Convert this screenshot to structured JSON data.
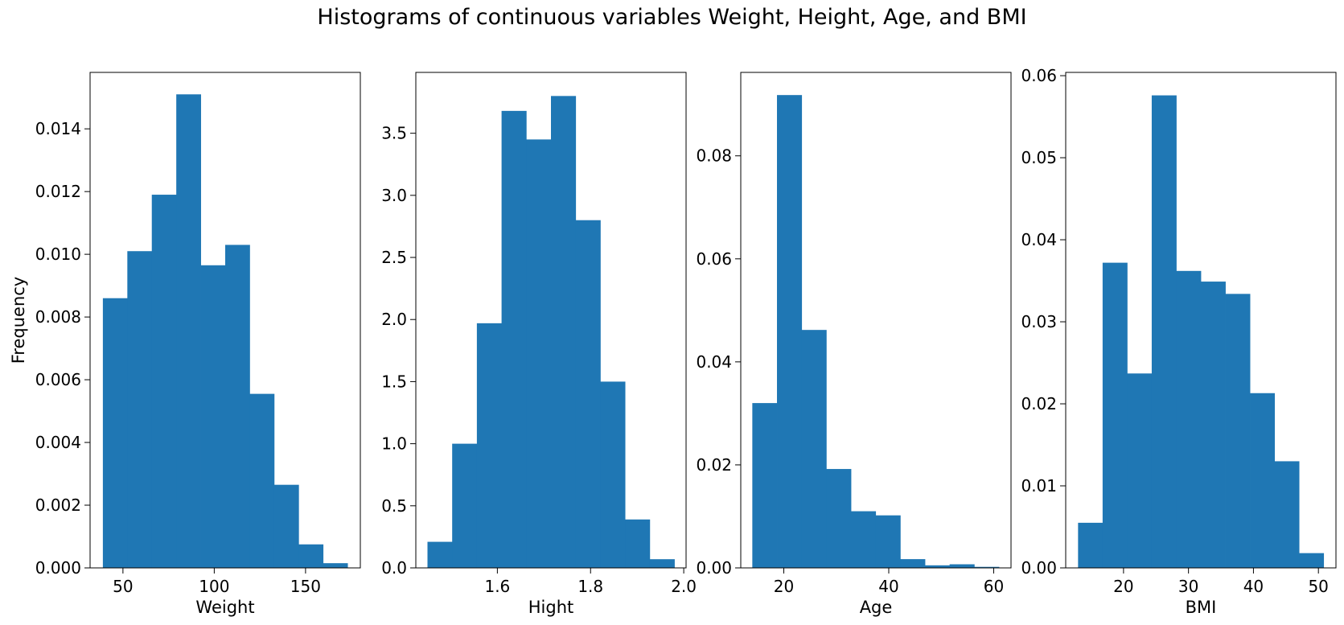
{
  "figure": {
    "title": "Histograms of continuous variables Weight, Height, Age, and BMI"
  },
  "colors": {
    "bar": "#1f77b4"
  },
  "chart_data": [
    {
      "type": "bar",
      "xlabel": "Weight",
      "ylabel": "Frequency",
      "xlim": [
        32,
        180
      ],
      "ylim": [
        0,
        0.0158
      ],
      "xticks": [
        50,
        100,
        150
      ],
      "yticks": [
        0.0,
        0.002,
        0.004,
        0.006,
        0.008,
        0.01,
        0.012,
        0.014
      ],
      "ytick_labels": [
        "0.000",
        "0.002",
        "0.004",
        "0.006",
        "0.008",
        "0.010",
        "0.012",
        "0.014"
      ],
      "xtick_labels": [
        "50",
        "100",
        "150"
      ],
      "bin_edges": [
        39,
        52.4,
        65.8,
        79.2,
        92.6,
        106,
        119.4,
        132.8,
        146.2,
        159.6,
        173
      ],
      "values": [
        0.0086,
        0.0101,
        0.0119,
        0.0151,
        0.00965,
        0.0103,
        0.00555,
        0.00265,
        0.00075,
        0.00015
      ]
    },
    {
      "type": "bar",
      "xlabel": "Hight",
      "ylabel": "",
      "xlim": [
        1.425,
        2.005
      ],
      "ylim": [
        0,
        3.99
      ],
      "xticks": [
        1.6,
        1.8,
        2.0
      ],
      "yticks": [
        0.0,
        0.5,
        1.0,
        1.5,
        2.0,
        2.5,
        3.0,
        3.5
      ],
      "ytick_labels": [
        "0.0",
        "0.5",
        "1.0",
        "1.5",
        "2.0",
        "2.5",
        "3.0",
        "3.5"
      ],
      "xtick_labels": [
        "1.6",
        "1.8",
        "2.0"
      ],
      "bin_edges": [
        1.45,
        1.503,
        1.556,
        1.609,
        1.662,
        1.715,
        1.768,
        1.821,
        1.874,
        1.927,
        1.98
      ],
      "values": [
        0.21,
        1.0,
        1.97,
        3.68,
        3.45,
        3.8,
        2.8,
        1.5,
        0.39,
        0.07
      ]
    },
    {
      "type": "bar",
      "xlabel": "Age",
      "ylabel": "",
      "xlim": [
        11.8,
        63.3
      ],
      "ylim": [
        0,
        0.0962
      ],
      "xticks": [
        20,
        40,
        60
      ],
      "yticks": [
        0.0,
        0.02,
        0.04,
        0.06,
        0.08
      ],
      "ytick_labels": [
        "0.00",
        "0.02",
        "0.04",
        "0.06",
        "0.08"
      ],
      "xtick_labels": [
        "20",
        "40",
        "60"
      ],
      "bin_edges": [
        14,
        18.7,
        23.4,
        28.1,
        32.8,
        37.5,
        42.2,
        46.9,
        51.6,
        56.3,
        61
      ],
      "values": [
        0.032,
        0.0918,
        0.0462,
        0.0192,
        0.011,
        0.0102,
        0.0017,
        0.0005,
        0.0007,
        0.0002
      ]
    },
    {
      "type": "bar",
      "xlabel": "BMI",
      "ylabel": "",
      "xlim": [
        11.1,
        52.7
      ],
      "ylim": [
        0,
        0.0604
      ],
      "xticks": [
        20,
        30,
        40,
        50
      ],
      "yticks": [
        0.0,
        0.01,
        0.02,
        0.03,
        0.04,
        0.05,
        0.06
      ],
      "ytick_labels": [
        "0.00",
        "0.01",
        "0.02",
        "0.03",
        "0.04",
        "0.05",
        "0.06"
      ],
      "xtick_labels": [
        "20",
        "30",
        "40",
        "50"
      ],
      "bin_edges": [
        13,
        16.78,
        20.56,
        24.34,
        28.12,
        31.9,
        35.68,
        39.46,
        43.24,
        47.02,
        50.8
      ],
      "values": [
        0.0055,
        0.0372,
        0.0237,
        0.0576,
        0.0362,
        0.0349,
        0.0334,
        0.0213,
        0.013,
        0.0018
      ]
    }
  ]
}
